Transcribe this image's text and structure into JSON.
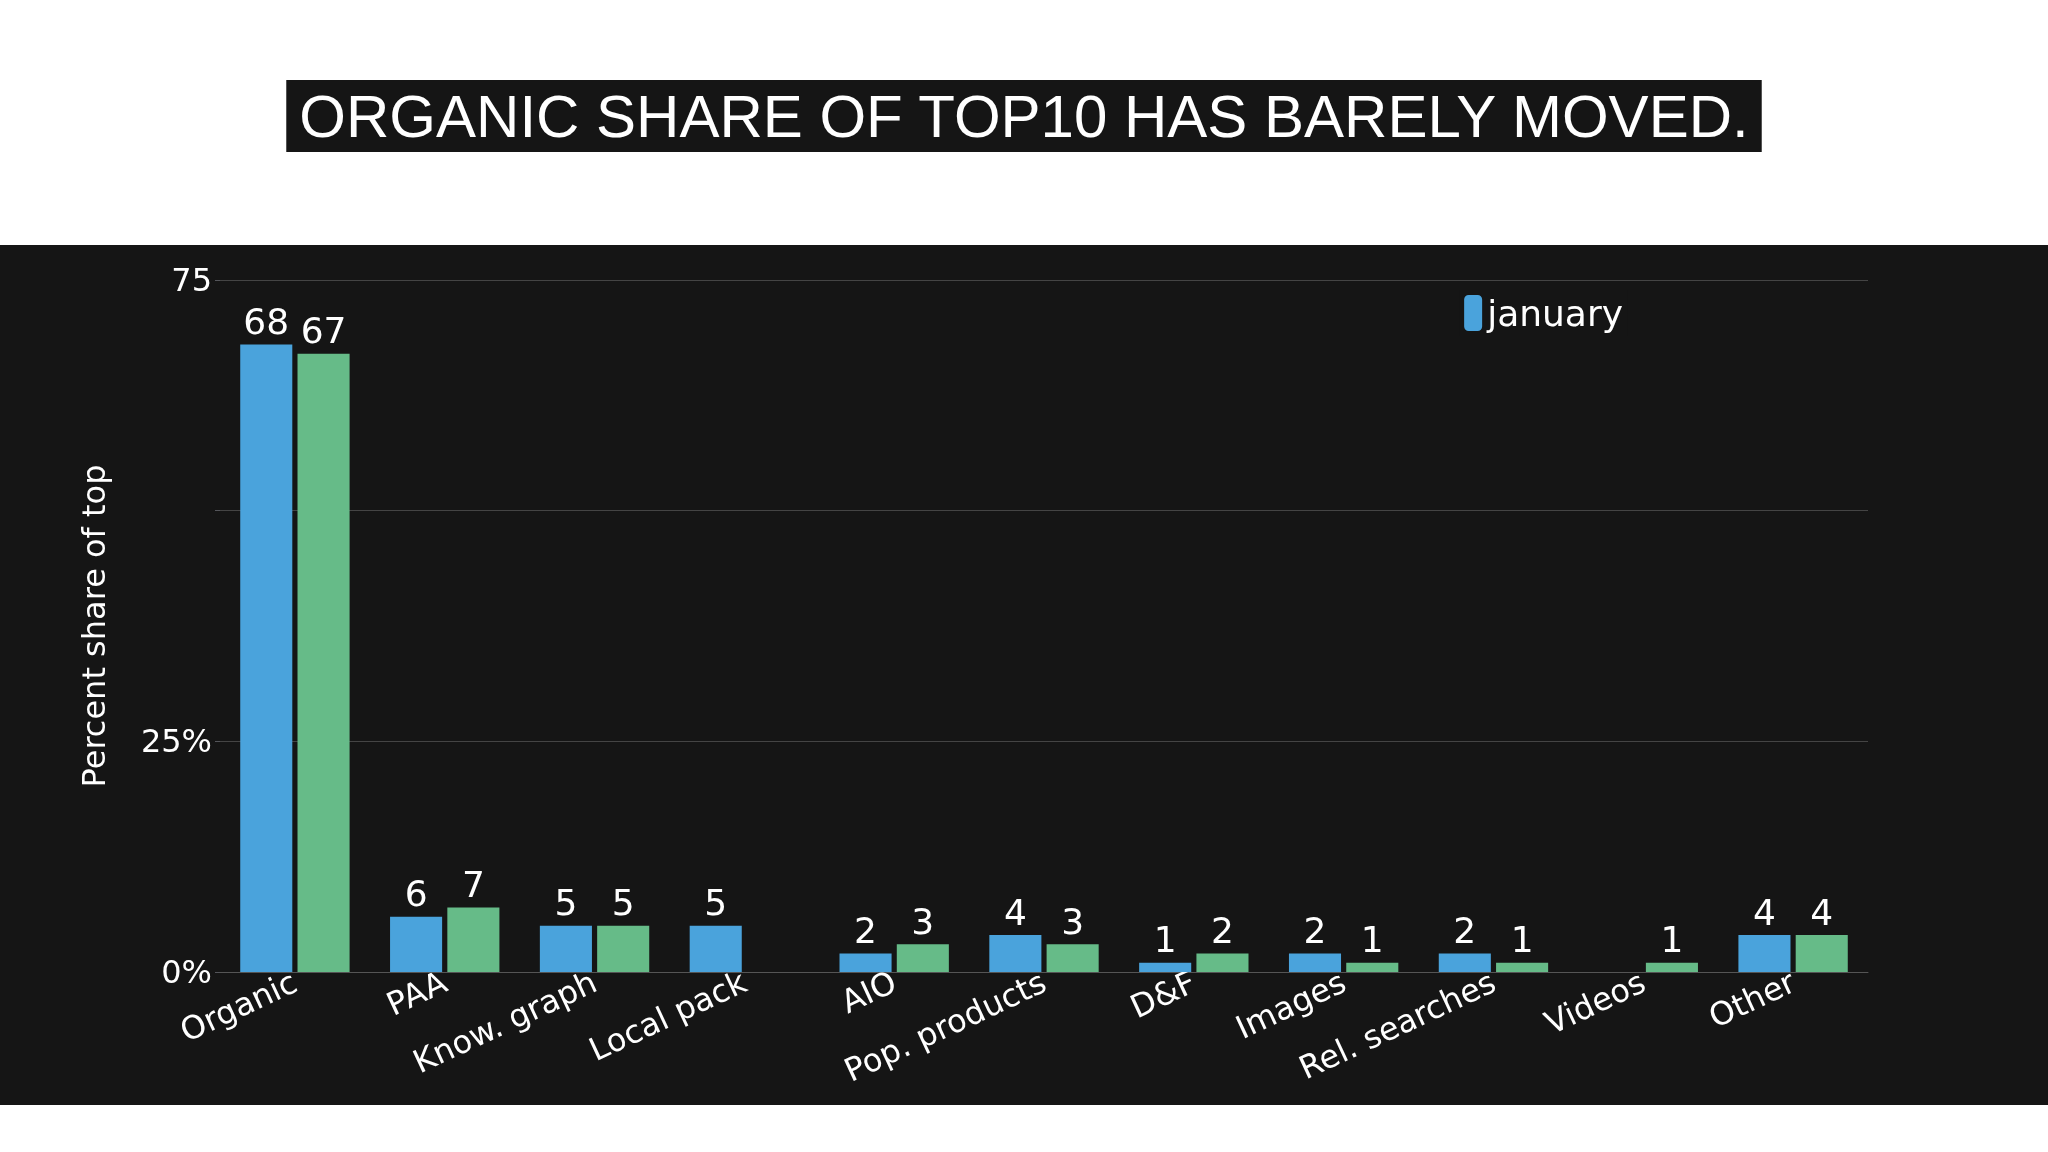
{
  "chart_data": {
    "type": "bar",
    "title": "ORGANIC SHARE OF TOP10 HAS BARELY MOVED.",
    "ylabel": "Percent share of top",
    "categories": [
      "Organic",
      "PAA",
      "Know. graph",
      "Local pack",
      "AIO",
      "Pop. products",
      "D&F",
      "Images",
      "Rel. searches",
      "Videos",
      "Other"
    ],
    "series": [
      {
        "name": "january",
        "color": "#4aa3dc",
        "values": [
          68,
          6,
          5,
          5,
          2,
          4,
          1,
          2,
          2,
          null,
          4
        ]
      },
      {
        "color": "#66bb88",
        "values": [
          67,
          7,
          5,
          null,
          3,
          3,
          2,
          1,
          1,
          1,
          4
        ]
      }
    ],
    "ylim": [
      0,
      75
    ],
    "yticks": [
      {
        "value": 0,
        "label": "0%"
      },
      {
        "value": 25,
        "label": "25%"
      },
      {
        "value": 50,
        "label": null
      },
      75
    ],
    "grid": "y",
    "legend": "top right",
    "data_labels": true
  }
}
